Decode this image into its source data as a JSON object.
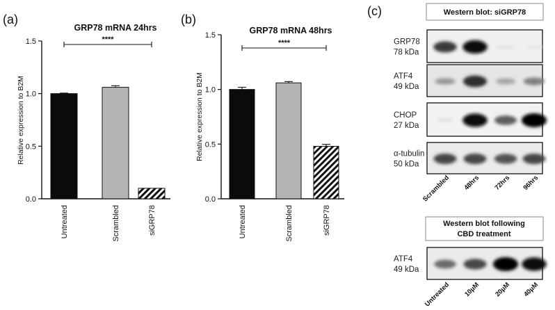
{
  "chart_data": [
    {
      "type": "bar",
      "panel_label": "(a)",
      "title": "GRP78 mRNA 24hrs",
      "ylabel": "Relative expression to B2M",
      "xlabel": "",
      "ylim": [
        0,
        1.5
      ],
      "yticks": [
        "0.0",
        "0.5",
        "1.0",
        "1.5"
      ],
      "categories": [
        "Untreated",
        "Scrambled",
        "siGRP78"
      ],
      "values": [
        1.0,
        1.06,
        0.1
      ],
      "errors": [
        0.005,
        0.015,
        0.0
      ],
      "fills": [
        "black",
        "gray",
        "hatched"
      ],
      "significance": {
        "label": "****",
        "from": 0,
        "to": 2
      }
    },
    {
      "type": "bar",
      "panel_label": "(b)",
      "title": "GRP78 mRNA 48hrs",
      "ylabel": "Relative expression to B2M",
      "xlabel": "",
      "ylim": [
        0,
        1.5
      ],
      "yticks": [
        "0.0",
        "0.5",
        "1.0",
        "1.5"
      ],
      "categories": [
        "Untreated",
        "Scrambled",
        "siGRP78"
      ],
      "values": [
        1.0,
        1.06,
        0.48
      ],
      "errors": [
        0.02,
        0.012,
        0.018
      ],
      "fills": [
        "black",
        "gray",
        "hatched"
      ],
      "significance": {
        "label": "****",
        "from": 0,
        "to": 2
      }
    }
  ],
  "colors": {
    "black": "#0b0b0b",
    "gray": "#b5b5b5",
    "axis": "#111111",
    "hatch": "#111111"
  },
  "blot_panel": {
    "panel_label": "(c)",
    "blot1": {
      "title": "Western blot: siGRP78",
      "rows": [
        {
          "protein": "GRP78",
          "kda": "78 kDa",
          "intensity": [
            0.75,
            0.95,
            0.05,
            0.03
          ],
          "bg": 0.06
        },
        {
          "protein": "ATF4",
          "kda": "49 kDa",
          "intensity": [
            0.35,
            0.8,
            0.3,
            0.45
          ],
          "bg": 0.1
        },
        {
          "protein": "CHOP",
          "kda": "27 kDa",
          "intensity": [
            0.05,
            0.95,
            0.6,
            1.0
          ],
          "bg": 0.05
        },
        {
          "protein": "α-tubulin",
          "kda": "50 kDa",
          "intensity": [
            0.7,
            0.7,
            0.65,
            0.7
          ],
          "bg": 0.08
        }
      ],
      "lanes": [
        "Scrambled",
        "48hrs",
        "72hrs",
        "96hrs"
      ]
    },
    "blot2": {
      "title_line1": "Western blot following",
      "title_line2": "CBD treatment",
      "rows": [
        {
          "protein": "ATF4",
          "kda": "49 kDa",
          "intensity": [
            0.55,
            0.7,
            1.0,
            0.95
          ],
          "bg": 0.08
        }
      ],
      "lanes": [
        "Untreated",
        "10μM",
        "20μM",
        "40μM"
      ]
    }
  }
}
